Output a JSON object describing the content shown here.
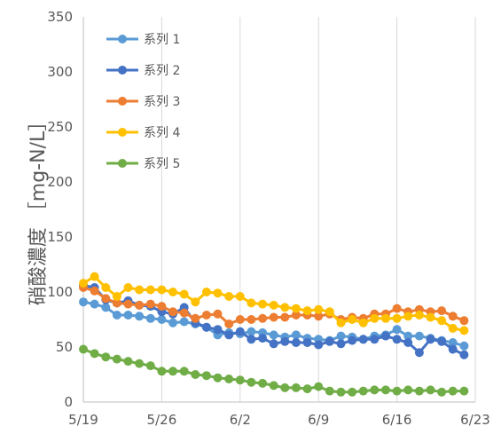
{
  "chart_data": {
    "type": "line",
    "ylabel": "硝酸濃度 ［mg-N/L］",
    "ylim": [
      0,
      350
    ],
    "yticks": [
      0,
      50,
      100,
      150,
      200,
      250,
      300,
      350
    ],
    "xlim": [
      "5/19",
      "6/23"
    ],
    "xticks": [
      "5/19",
      "5/26",
      "6/2",
      "6/9",
      "6/16",
      "6/23"
    ],
    "grid": "vertical",
    "legend": "top-left",
    "x": [
      "5/19",
      "5/20",
      "5/21",
      "5/22",
      "5/23",
      "5/24",
      "5/25",
      "5/26",
      "5/27",
      "5/28",
      "5/29",
      "5/30",
      "5/31",
      "6/1",
      "6/2",
      "6/3",
      "6/4",
      "6/5",
      "6/6",
      "6/7",
      "6/8",
      "6/9",
      "6/10",
      "6/11",
      "6/12",
      "6/13",
      "6/14",
      "6/15",
      "6/16",
      "6/17",
      "6/18",
      "6/19",
      "6/20",
      "6/21",
      "6/22"
    ],
    "series": [
      {
        "name": "系列 1",
        "color": "#5B9BD5",
        "values": [
          91,
          89,
          86,
          79,
          79,
          78,
          76,
          75,
          72,
          73,
          71,
          68,
          61,
          63,
          62,
          64,
          63,
          61,
          59,
          61,
          58,
          57,
          56,
          60,
          59,
          57,
          60,
          61,
          66,
          60,
          60,
          58,
          56,
          54,
          51
        ]
      },
      {
        "name": "系列 2",
        "color": "#4472C4",
        "values": [
          106,
          104,
          93,
          90,
          92,
          88,
          87,
          82,
          80,
          86,
          72,
          68,
          66,
          61,
          64,
          57,
          58,
          53,
          55,
          54,
          54,
          52,
          55,
          53,
          56,
          57,
          57,
          60,
          57,
          54,
          45,
          57,
          55,
          48,
          43
        ]
      },
      {
        "name": "系列 3",
        "color": "#ED7D31",
        "values": [
          104,
          101,
          94,
          90,
          89,
          88,
          89,
          87,
          82,
          81,
          76,
          79,
          80,
          71,
          75,
          75,
          76,
          77,
          77,
          79,
          79,
          78,
          80,
          75,
          77,
          76,
          80,
          80,
          85,
          82,
          84,
          82,
          83,
          78,
          74
        ]
      },
      {
        "name": "系列 4",
        "color": "#FFC000",
        "values": [
          108,
          114,
          104,
          96,
          104,
          102,
          102,
          102,
          100,
          98,
          91,
          100,
          99,
          96,
          96,
          90,
          89,
          88,
          86,
          85,
          83,
          84,
          82,
          72,
          75,
          72,
          76,
          76,
          76,
          78,
          79,
          77,
          74,
          67,
          65
        ]
      },
      {
        "name": "系列 5",
        "color": "#70AD47",
        "values": [
          48,
          44,
          41,
          39,
          37,
          35,
          33,
          28,
          28,
          28,
          25,
          24,
          22,
          21,
          20,
          18,
          17,
          15,
          13,
          13,
          12,
          14,
          10,
          9,
          9,
          10,
          11,
          11,
          10,
          11,
          10,
          11,
          9,
          10,
          10
        ]
      }
    ]
  }
}
